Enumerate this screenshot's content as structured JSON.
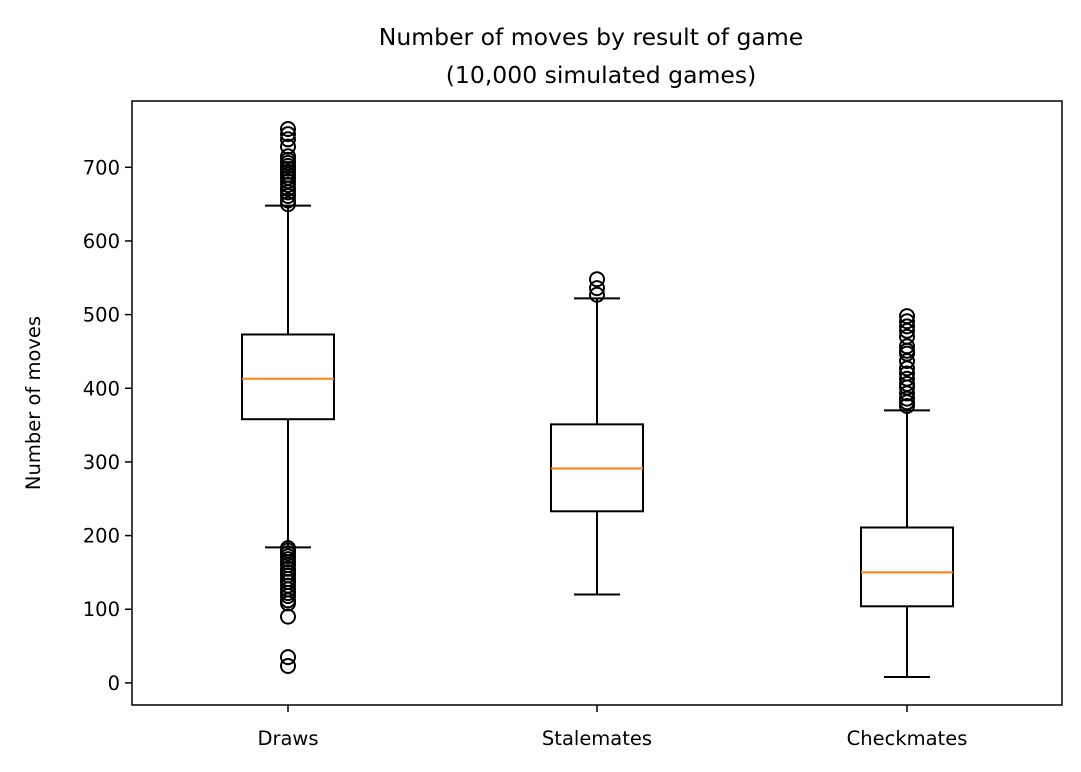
{
  "chart_data": {
    "type": "boxplot",
    "title": "Number of moves by result of game",
    "subtitle": "(10,000 simulated games)",
    "xlabel": "",
    "ylabel": "Number of moves",
    "ylim": [
      -30,
      790
    ],
    "yticks": [
      0,
      100,
      200,
      300,
      400,
      500,
      600,
      700
    ],
    "grid": false,
    "colors": {
      "box": "#000000",
      "median": "#ff7f0e",
      "background": "#ffffff"
    },
    "categories": [
      "Draws",
      "Stalemates",
      "Checkmates"
    ],
    "boxes": [
      {
        "category": "Draws",
        "whisker_low": 184,
        "q1": 358,
        "median": 413,
        "q3": 473,
        "whisker_high": 648,
        "outliers": [
          23,
          35,
          90,
          108,
          112,
          118,
          122,
          127,
          132,
          137,
          141,
          146,
          150,
          155,
          160,
          164,
          168,
          172,
          176,
          180,
          183,
          650,
          655,
          661,
          666,
          671,
          676,
          681,
          686,
          690,
          694,
          698,
          702,
          706,
          710,
          715,
          728,
          738,
          745,
          752
        ]
      },
      {
        "category": "Stalemates",
        "whisker_low": 120,
        "q1": 233,
        "median": 291,
        "q3": 351,
        "whisker_high": 522,
        "outliers": [
          527,
          536,
          548
        ]
      },
      {
        "category": "Checkmates",
        "whisker_low": 8,
        "q1": 104,
        "median": 150,
        "q3": 211,
        "whisker_high": 370,
        "outliers": [
          376,
          381,
          386,
          393,
          401,
          406,
          413,
          420,
          427,
          437,
          447,
          451,
          457,
          470,
          478,
          484,
          491,
          498
        ]
      }
    ]
  }
}
